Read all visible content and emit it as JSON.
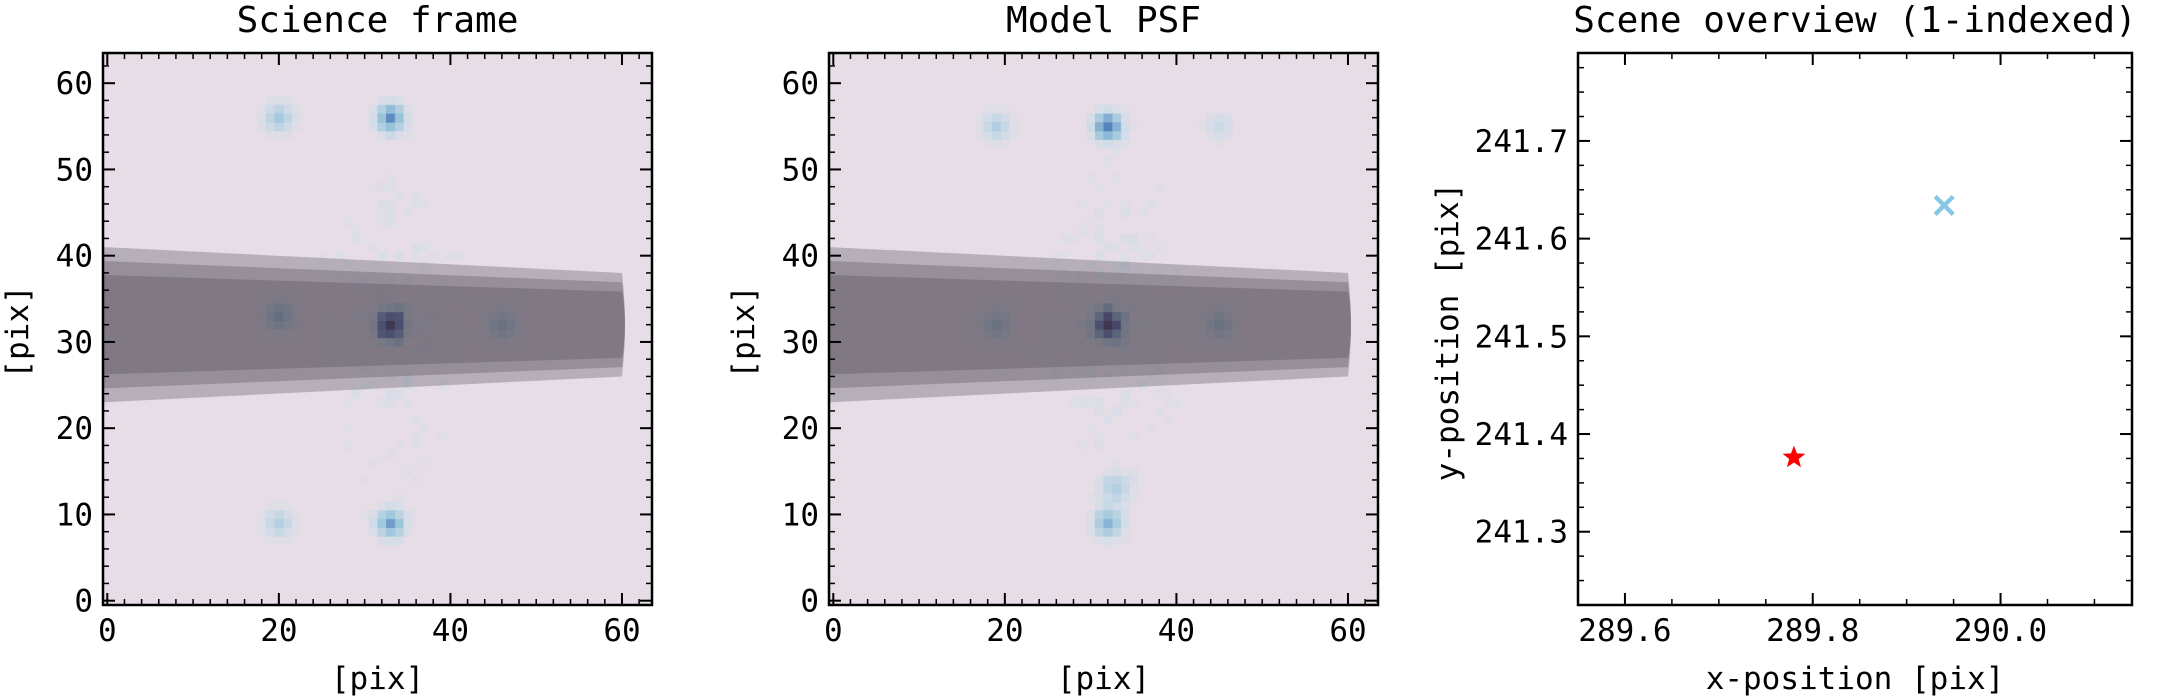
{
  "chart_data": [
    {
      "type": "heatmap",
      "title": "Science frame",
      "xlabel": "[pix]",
      "ylabel": "[pix]",
      "xlim": [
        -0.5,
        63.5
      ],
      "ylim": [
        -0.5,
        63.5
      ],
      "xticks": [
        0,
        20,
        40,
        60
      ],
      "yticks": [
        0,
        10,
        20,
        30,
        40,
        50,
        60
      ],
      "background_color": "#e6dde6",
      "colormap": "blue-purple",
      "blobs": [
        {
          "x": 33,
          "y": 32,
          "intensity": 1.0
        },
        {
          "x": 33,
          "y": 56,
          "intensity": 0.55
        },
        {
          "x": 20,
          "y": 56,
          "intensity": 0.35
        },
        {
          "x": 20,
          "y": 33,
          "intensity": 0.45
        },
        {
          "x": 46,
          "y": 32,
          "intensity": 0.4
        },
        {
          "x": 33,
          "y": 9,
          "intensity": 0.5
        },
        {
          "x": 20,
          "y": 9,
          "intensity": 0.3
        }
      ],
      "speckle_seed": 7,
      "overlay_band": {
        "x_start": 0,
        "x_end": 60,
        "y_center": 32,
        "half_width_start": 9,
        "half_width_end": 6,
        "color": "#55505a"
      }
    },
    {
      "type": "heatmap",
      "title": "Model PSF",
      "xlabel": "[pix]",
      "ylabel": "[pix]",
      "xlim": [
        -0.5,
        63.5
      ],
      "ylim": [
        -0.5,
        63.5
      ],
      "xticks": [
        0,
        20,
        40,
        60
      ],
      "yticks": [
        0,
        10,
        20,
        30,
        40,
        50,
        60
      ],
      "background_color": "#e6dde6",
      "colormap": "blue-purple",
      "blobs": [
        {
          "x": 32,
          "y": 32,
          "intensity": 1.0
        },
        {
          "x": 32,
          "y": 55,
          "intensity": 0.6
        },
        {
          "x": 19,
          "y": 55,
          "intensity": 0.3
        },
        {
          "x": 19,
          "y": 32,
          "intensity": 0.4
        },
        {
          "x": 45,
          "y": 32,
          "intensity": 0.4
        },
        {
          "x": 32,
          "y": 9,
          "intensity": 0.45
        },
        {
          "x": 33,
          "y": 13,
          "intensity": 0.3
        },
        {
          "x": 45,
          "y": 55,
          "intensity": 0.2
        }
      ],
      "speckle_seed": 13,
      "overlay_band": {
        "x_start": 0,
        "x_end": 60,
        "y_center": 32,
        "half_width_start": 9,
        "half_width_end": 6,
        "color": "#55505a"
      }
    },
    {
      "type": "scatter",
      "title": "Scene overview (1-indexed)",
      "xlabel": "x-position [pix]",
      "ylabel": "y-position [pix]",
      "xlim": [
        289.55,
        290.14
      ],
      "ylim": [
        241.225,
        241.79
      ],
      "xticks": [
        289.6,
        289.8,
        290.0
      ],
      "xtick_labels": [
        "289.6",
        "289.8",
        "290.0"
      ],
      "yticks": [
        241.3,
        241.4,
        241.5,
        241.6,
        241.7
      ],
      "ytick_labels": [
        "241.3",
        "241.4",
        "241.5",
        "241.6",
        "241.7"
      ],
      "points": [
        {
          "x": 289.78,
          "y": 241.376,
          "marker": "star",
          "color": "#ff0000"
        },
        {
          "x": 289.94,
          "y": 241.634,
          "marker": "x",
          "color": "#87c8e6"
        }
      ]
    }
  ]
}
